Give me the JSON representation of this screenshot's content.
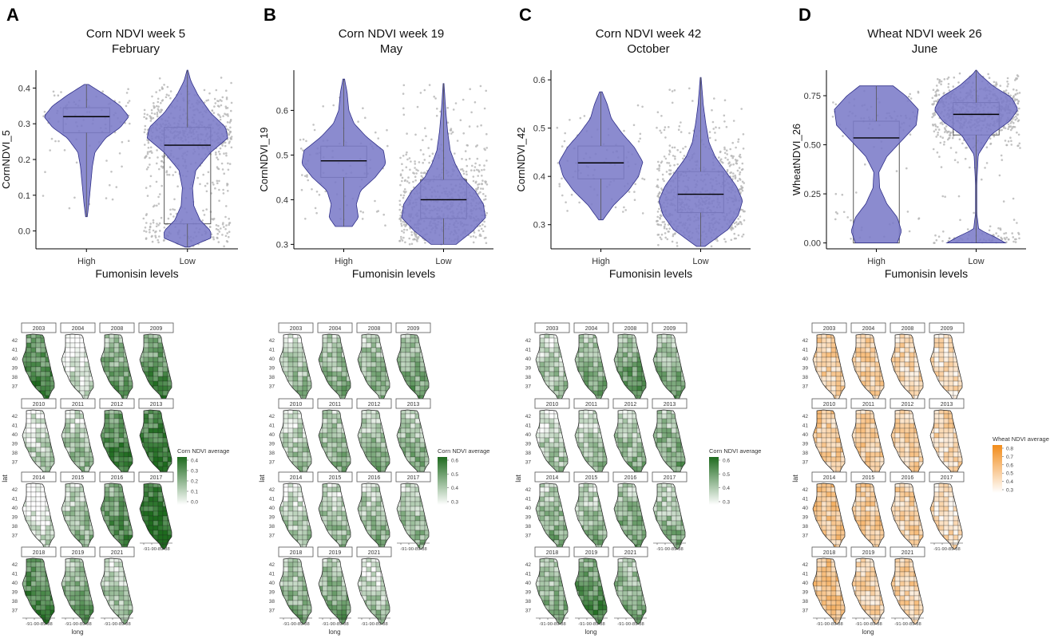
{
  "figure_title": "Corn and wheat NDVI by fumonisin levels, with Illinois county NDVI maps",
  "colors": {
    "violin_fill": "#7b7bc8",
    "violin_stroke": "#2e2e88",
    "jitter": "#b4b4b4",
    "box_stroke": "#555555",
    "median": "#000000",
    "corn_high": "#1e6b1e",
    "corn_low": "#ffffff",
    "wheat_high": "#f28c1a",
    "wheat_low": "#ffffff",
    "map_border": "#222222",
    "strip_fill": "#ffffff",
    "strip_border": "#555555"
  },
  "chart_data": [
    {
      "panel": "A",
      "type": "violin",
      "title": "Corn NDVI week 5",
      "subtitle": "February",
      "xlabel": "Fumonisin levels",
      "ylabel": "CornNDVI_5",
      "categories": [
        "High",
        "Low"
      ],
      "ylim": [
        -0.05,
        0.45
      ],
      "yticks": [
        0.0,
        0.1,
        0.2,
        0.3,
        0.4
      ],
      "ytick_labels": [
        "0.0",
        "0.1",
        "0.2",
        "0.3",
        "0.4"
      ],
      "series": [
        {
          "name": "High",
          "min": 0.04,
          "max": 0.41,
          "q1": 0.275,
          "median": 0.32,
          "q3": 0.345,
          "density": [
            [
              0.04,
              0.02
            ],
            [
              0.08,
              0.06
            ],
            [
              0.13,
              0.1
            ],
            [
              0.18,
              0.14
            ],
            [
              0.22,
              0.2
            ],
            [
              0.26,
              0.45
            ],
            [
              0.29,
              0.8
            ],
            [
              0.32,
              1.0
            ],
            [
              0.35,
              0.8
            ],
            [
              0.38,
              0.45
            ],
            [
              0.41,
              0.05
            ]
          ]
        },
        {
          "name": "Low",
          "min": -0.045,
          "max": 0.45,
          "q1": 0.02,
          "median": 0.24,
          "q3": 0.29,
          "density": [
            [
              -0.045,
              0.05
            ],
            [
              -0.02,
              0.55
            ],
            [
              0.0,
              0.55
            ],
            [
              0.03,
              0.3
            ],
            [
              0.07,
              0.15
            ],
            [
              0.12,
              0.12
            ],
            [
              0.17,
              0.2
            ],
            [
              0.22,
              0.55
            ],
            [
              0.26,
              0.95
            ],
            [
              0.29,
              0.9
            ],
            [
              0.33,
              0.55
            ],
            [
              0.38,
              0.25
            ],
            [
              0.42,
              0.08
            ],
            [
              0.45,
              0.01
            ]
          ]
        }
      ]
    },
    {
      "panel": "B",
      "type": "violin",
      "title": "Corn NDVI week 19",
      "subtitle": "May",
      "xlabel": "Fumonisin levels",
      "ylabel": "CornNDVI_19",
      "categories": [
        "High",
        "Low"
      ],
      "ylim": [
        0.29,
        0.69
      ],
      "yticks": [
        0.3,
        0.4,
        0.5,
        0.6
      ],
      "ytick_labels": [
        "0.3",
        "0.4",
        "0.5",
        "0.6"
      ],
      "series": [
        {
          "name": "High",
          "min": 0.34,
          "max": 0.67,
          "q1": 0.45,
          "median": 0.487,
          "q3": 0.52,
          "density": [
            [
              0.34,
              0.2
            ],
            [
              0.36,
              0.35
            ],
            [
              0.39,
              0.3
            ],
            [
              0.42,
              0.4
            ],
            [
              0.45,
              0.75
            ],
            [
              0.48,
              1.0
            ],
            [
              0.51,
              0.95
            ],
            [
              0.54,
              0.55
            ],
            [
              0.57,
              0.25
            ],
            [
              0.6,
              0.12
            ],
            [
              0.64,
              0.08
            ],
            [
              0.67,
              0.02
            ]
          ]
        },
        {
          "name": "Low",
          "min": 0.3,
          "max": 0.66,
          "q1": 0.358,
          "median": 0.4,
          "q3": 0.445,
          "density": [
            [
              0.3,
              0.3
            ],
            [
              0.33,
              0.7
            ],
            [
              0.36,
              1.0
            ],
            [
              0.39,
              0.95
            ],
            [
              0.42,
              0.75
            ],
            [
              0.45,
              0.45
            ],
            [
              0.48,
              0.28
            ],
            [
              0.51,
              0.16
            ],
            [
              0.55,
              0.1
            ],
            [
              0.59,
              0.06
            ],
            [
              0.63,
              0.03
            ],
            [
              0.66,
              0.01
            ]
          ]
        }
      ]
    },
    {
      "panel": "C",
      "type": "violin",
      "title": "Corn NDVI week 42",
      "subtitle": "October",
      "xlabel": "Fumonisin levels",
      "ylabel": "CornNDVI_42",
      "categories": [
        "High",
        "Low"
      ],
      "ylim": [
        0.25,
        0.62
      ],
      "yticks": [
        0.3,
        0.4,
        0.5,
        0.6
      ],
      "ytick_labels": [
        "0.3",
        "0.4",
        "0.5",
        "0.6"
      ],
      "series": [
        {
          "name": "High",
          "min": 0.31,
          "max": 0.575,
          "q1": 0.395,
          "median": 0.428,
          "q3": 0.463,
          "density": [
            [
              0.31,
              0.05
            ],
            [
              0.34,
              0.3
            ],
            [
              0.37,
              0.65
            ],
            [
              0.4,
              0.9
            ],
            [
              0.43,
              1.0
            ],
            [
              0.46,
              0.8
            ],
            [
              0.49,
              0.5
            ],
            [
              0.52,
              0.25
            ],
            [
              0.55,
              0.15
            ],
            [
              0.575,
              0.03
            ]
          ]
        },
        {
          "name": "Low",
          "min": 0.255,
          "max": 0.605,
          "q1": 0.325,
          "median": 0.363,
          "q3": 0.41,
          "density": [
            [
              0.255,
              0.1
            ],
            [
              0.29,
              0.65
            ],
            [
              0.32,
              0.9
            ],
            [
              0.35,
              1.0
            ],
            [
              0.38,
              0.85
            ],
            [
              0.41,
              0.6
            ],
            [
              0.44,
              0.35
            ],
            [
              0.47,
              0.2
            ],
            [
              0.51,
              0.12
            ],
            [
              0.55,
              0.06
            ],
            [
              0.605,
              0.01
            ]
          ]
        }
      ]
    },
    {
      "panel": "D",
      "type": "violin",
      "title": "Wheat NDVI week 26",
      "subtitle": "June",
      "xlabel": "Fumonisin levels",
      "ylabel": "WheatNDVI_26",
      "categories": [
        "High",
        "Low"
      ],
      "ylim": [
        -0.03,
        0.88
      ],
      "yticks": [
        0.0,
        0.25,
        0.5,
        0.75
      ],
      "ytick_labels": [
        "0.00",
        "0.25",
        "0.50",
        "0.75"
      ],
      "series": [
        {
          "name": "High",
          "min": 0.0,
          "max": 0.8,
          "q1": 0.0,
          "median": 0.535,
          "q3": 0.62,
          "density": [
            [
              0.0,
              0.5
            ],
            [
              0.06,
              0.6
            ],
            [
              0.13,
              0.5
            ],
            [
              0.2,
              0.25
            ],
            [
              0.28,
              0.08
            ],
            [
              0.36,
              0.06
            ],
            [
              0.44,
              0.25
            ],
            [
              0.52,
              0.6
            ],
            [
              0.6,
              0.95
            ],
            [
              0.68,
              1.0
            ],
            [
              0.75,
              0.7
            ],
            [
              0.8,
              0.4
            ]
          ]
        },
        {
          "name": "Low",
          "min": 0.0,
          "max": 0.88,
          "q1": 0.55,
          "median": 0.655,
          "q3": 0.715,
          "density": [
            [
              0.0,
              0.7
            ],
            [
              0.03,
              0.45
            ],
            [
              0.07,
              0.06
            ],
            [
              0.15,
              0.015
            ],
            [
              0.3,
              0.015
            ],
            [
              0.45,
              0.05
            ],
            [
              0.55,
              0.35
            ],
            [
              0.62,
              0.8
            ],
            [
              0.68,
              1.0
            ],
            [
              0.74,
              0.85
            ],
            [
              0.8,
              0.4
            ],
            [
              0.86,
              0.08
            ],
            [
              0.88,
              0.01
            ]
          ]
        }
      ]
    },
    {
      "panel": "A",
      "type": "heatmap",
      "map_kind": "corn",
      "xlabel": "long",
      "ylabel": "lat",
      "lat_ticks": [
        "42",
        "41",
        "40",
        "39",
        "38",
        "37"
      ],
      "long_tick_label": "-91-90-89-88",
      "legend_title": "Corn NDVI average",
      "legend_ticks": [
        "0.4",
        "0.3",
        "0.2",
        "0.1",
        "0.0"
      ],
      "years": [
        "2003",
        "2004",
        "2008",
        "2009",
        "2010",
        "2011",
        "2012",
        "2013",
        "2014",
        "2015",
        "2016",
        "2017",
        "2018",
        "2019",
        "2021"
      ],
      "intensity": [
        0.7,
        0.08,
        0.5,
        0.65,
        0.22,
        0.3,
        0.75,
        0.82,
        0.05,
        0.35,
        0.62,
        0.9,
        0.72,
        0.5,
        0.3
      ]
    },
    {
      "panel": "B",
      "type": "heatmap",
      "map_kind": "corn",
      "xlabel": "long",
      "ylabel": "lat",
      "lat_ticks": [
        "42",
        "41",
        "40",
        "39",
        "38",
        "37"
      ],
      "long_tick_label": "-91-90-89-88",
      "legend_title": "Corn NDVI average",
      "legend_ticks": [
        "0.6",
        "0.5",
        "0.4",
        "0.3"
      ],
      "years": [
        "2003",
        "2004",
        "2008",
        "2009",
        "2010",
        "2011",
        "2012",
        "2013",
        "2014",
        "2015",
        "2016",
        "2017",
        "2018",
        "2019",
        "2021"
      ],
      "intensity": [
        0.3,
        0.4,
        0.4,
        0.45,
        0.3,
        0.38,
        0.38,
        0.4,
        0.25,
        0.32,
        0.35,
        0.35,
        0.4,
        0.45,
        0.25
      ]
    },
    {
      "panel": "C",
      "type": "heatmap",
      "map_kind": "corn",
      "xlabel": "long",
      "ylabel": "lat",
      "lat_ticks": [
        "42",
        "41",
        "40",
        "39",
        "38",
        "37"
      ],
      "long_tick_label": "-91-90-89-88",
      "legend_title": "Corn NDVI average",
      "legend_ticks": [
        "0.6",
        "0.5",
        "0.4",
        "0.3"
      ],
      "years": [
        "2003",
        "2004",
        "2008",
        "2009",
        "2010",
        "2011",
        "2012",
        "2013",
        "2014",
        "2015",
        "2016",
        "2017",
        "2018",
        "2019",
        "2021"
      ],
      "intensity": [
        0.3,
        0.45,
        0.55,
        0.45,
        0.25,
        0.3,
        0.35,
        0.45,
        0.4,
        0.35,
        0.45,
        0.38,
        0.4,
        0.65,
        0.45
      ]
    },
    {
      "panel": "D",
      "type": "heatmap",
      "map_kind": "wheat",
      "xlabel": "long",
      "ylabel": "lat",
      "lat_ticks": [
        "42",
        "41",
        "40",
        "39",
        "38",
        "37"
      ],
      "long_tick_label": "-91-90-89-88",
      "legend_title": "Wheat NDVI average",
      "legend_ticks": [
        "0.8",
        "0.7",
        "0.6",
        "0.5",
        "0.4",
        "0.3"
      ],
      "years": [
        "2003",
        "2004",
        "2008",
        "2009",
        "2010",
        "2011",
        "2012",
        "2013",
        "2014",
        "2015",
        "2016",
        "2017",
        "2018",
        "2019",
        "2021"
      ],
      "intensity": [
        0.5,
        0.5,
        0.45,
        0.4,
        0.55,
        0.55,
        0.5,
        0.45,
        0.6,
        0.55,
        0.5,
        0.4,
        0.6,
        0.45,
        0.5
      ]
    }
  ]
}
